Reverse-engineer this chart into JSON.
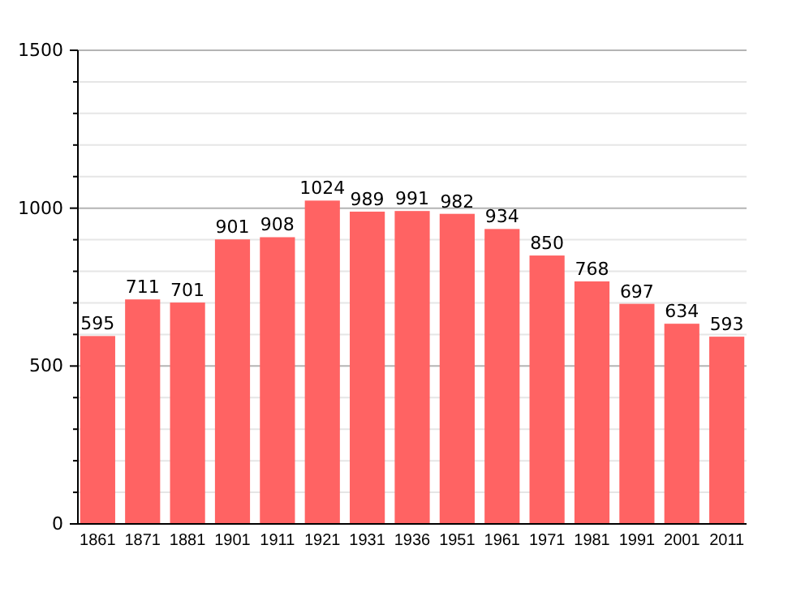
{
  "chart_data": {
    "type": "bar",
    "categories": [
      "1861",
      "1871",
      "1881",
      "1901",
      "1911",
      "1921",
      "1931",
      "1936",
      "1951",
      "1961",
      "1971",
      "1981",
      "1991",
      "2001",
      "2011"
    ],
    "values": [
      595,
      711,
      701,
      901,
      908,
      1024,
      989,
      991,
      982,
      934,
      850,
      768,
      697,
      634,
      593
    ],
    "color": "#ff6363",
    "ylim": [
      0,
      1500
    ],
    "yticks": [
      0,
      {
        "value": 100,
        "label": null
      },
      {
        "value": 200,
        "label": null
      },
      {
        "value": 300,
        "label": null
      },
      {
        "value": 400,
        "label": null
      },
      500,
      {
        "value": 600,
        "label": null
      },
      {
        "value": 700,
        "label": null
      },
      {
        "value": 800,
        "label": null
      },
      {
        "value": 900,
        "label": null
      },
      1000,
      {
        "value": 1100,
        "label": null
      },
      {
        "value": 1200,
        "label": null
      },
      {
        "value": 1300,
        "label": null
      },
      {
        "value": 1400,
        "label": null
      },
      1500
    ],
    "grid": "y",
    "data_labels": true
  }
}
